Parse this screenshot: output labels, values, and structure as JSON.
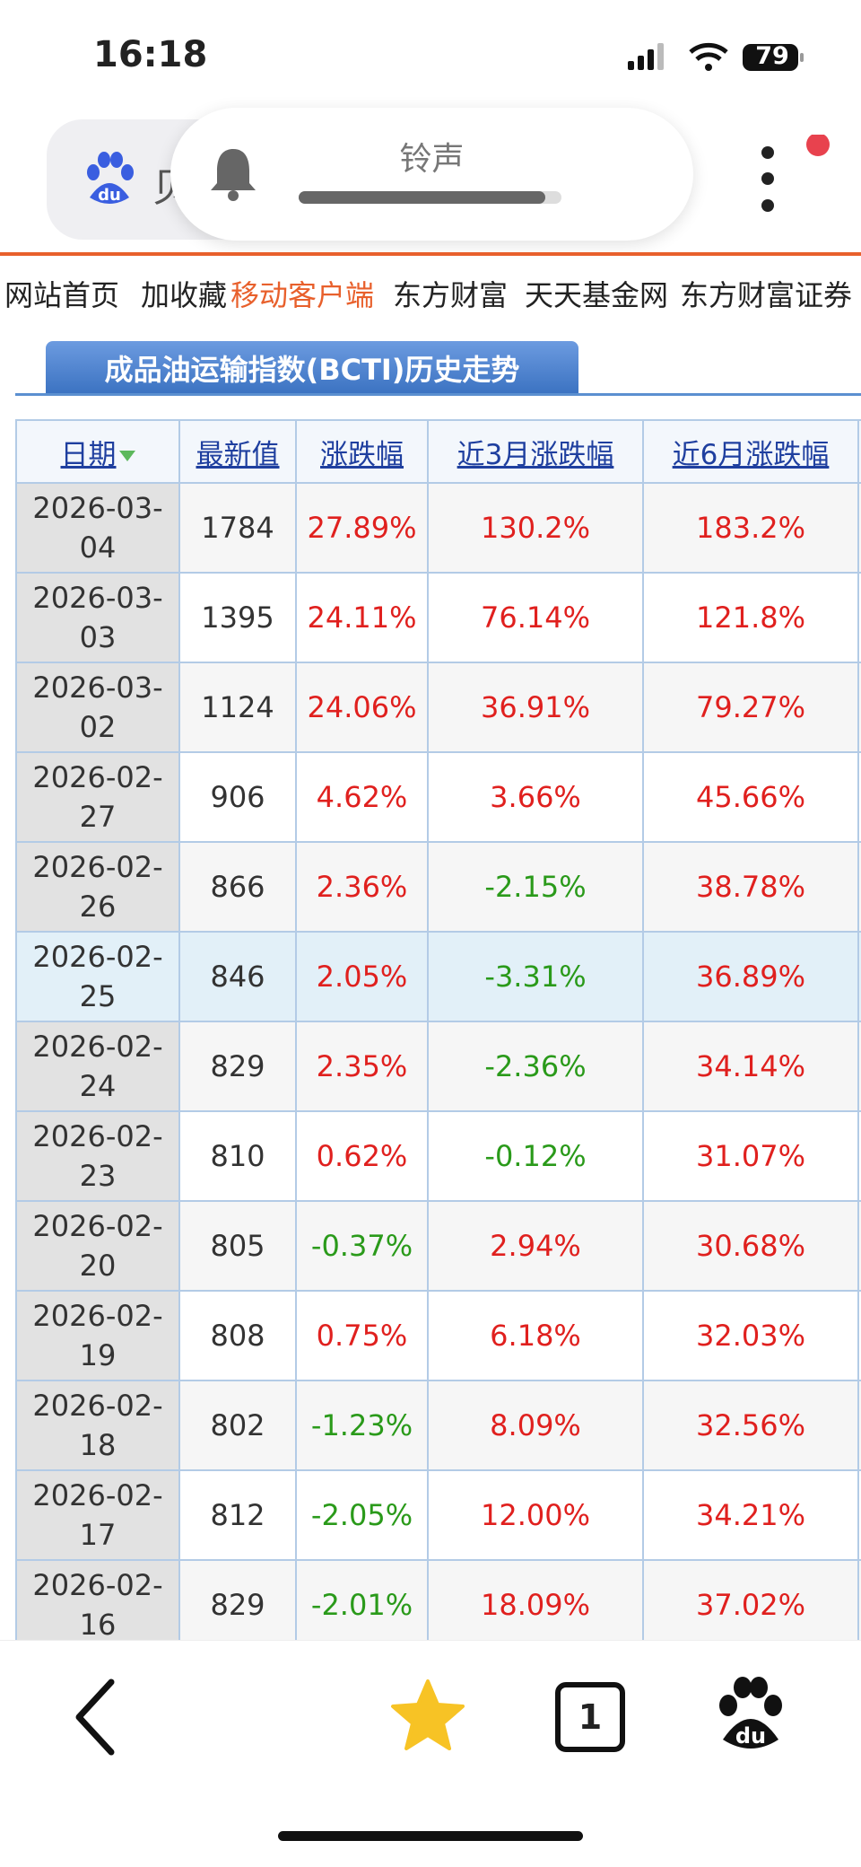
{
  "status_bar": {
    "time": "16:18",
    "battery": "79"
  },
  "browser": {
    "query": "贝",
    "notification": "铃声",
    "tab_count": "1"
  },
  "nav_links": [
    "网站首页",
    "加收藏",
    "移动客户端",
    "东方财富",
    "天天基金网",
    "东方财富证券"
  ],
  "tab_title": "成品油运输指数(BCTI)历史走势",
  "table": {
    "headers": [
      "日期",
      "最新值",
      "涨跌幅",
      "近3月涨跌幅",
      "近6月涨跌幅"
    ],
    "rows": [
      [
        "2026-03-04",
        "1784",
        "27.89%",
        "130.2%",
        "183.2%"
      ],
      [
        "2026-03-03",
        "1395",
        "24.11%",
        "76.14%",
        "121.8%"
      ],
      [
        "2026-03-02",
        "1124",
        "24.06%",
        "36.91%",
        "79.27%"
      ],
      [
        "2026-02-27",
        "906",
        "4.62%",
        "3.66%",
        "45.66%"
      ],
      [
        "2026-02-26",
        "866",
        "2.36%",
        "-2.15%",
        "38.78%"
      ],
      [
        "2026-02-25",
        "846",
        "2.05%",
        "-3.31%",
        "36.89%"
      ],
      [
        "2026-02-24",
        "829",
        "2.35%",
        "-2.36%",
        "34.14%"
      ],
      [
        "2026-02-23",
        "810",
        "0.62%",
        "-0.12%",
        "31.07%"
      ],
      [
        "2026-02-20",
        "805",
        "-0.37%",
        "2.94%",
        "30.68%"
      ],
      [
        "2026-02-19",
        "808",
        "0.75%",
        "6.18%",
        "32.03%"
      ],
      [
        "2026-02-18",
        "802",
        "-1.23%",
        "8.09%",
        "32.56%"
      ],
      [
        "2026-02-17",
        "812",
        "-2.05%",
        "12.00%",
        "34.21%"
      ],
      [
        "2026-02-16",
        "829",
        "-2.01%",
        "18.09%",
        "37.02%"
      ]
    ]
  }
}
